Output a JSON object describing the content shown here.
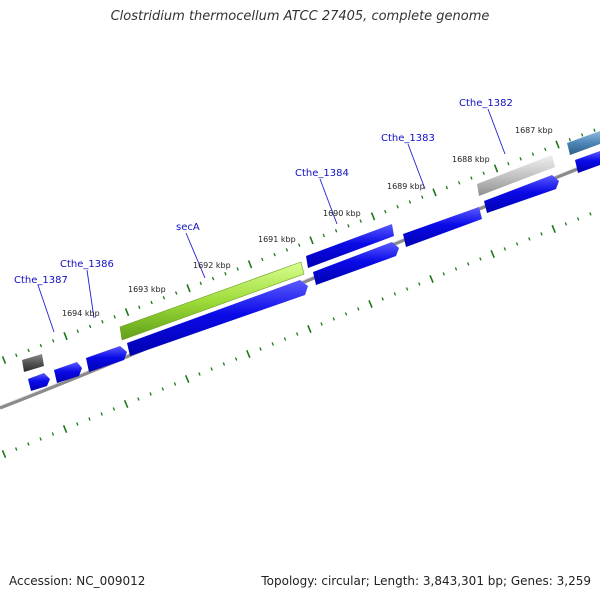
{
  "title": "Clostridium thermocellum ATCC 27405, complete genome",
  "footer": {
    "accession": "Accession: NC_009012",
    "summary": "Topology: circular; Length: 3,843,301 bp; Genes: 3,259"
  },
  "colors": {
    "forward_gene": "#0a0ae8",
    "highlight_gene": "#9edc3a",
    "grey_gene": "#b9b9b9",
    "steel_gene": "#4d86b7",
    "dark_gene": "#555555",
    "backbone": "#777777",
    "ticks": "#1a7a1a",
    "label": "#1010c0"
  },
  "ruler_labels": [
    "1687 kbp",
    "1688 kbp",
    "1689 kbp",
    "1690 kbp",
    "1691 kbp",
    "1692 kbp",
    "1693 kbp",
    "1694 kbp"
  ],
  "gene_labels": [
    "Cthe_1382",
    "Cthe_1383",
    "Cthe_1384",
    "secA",
    "Cthe_1386",
    "Cthe_1387"
  ]
}
